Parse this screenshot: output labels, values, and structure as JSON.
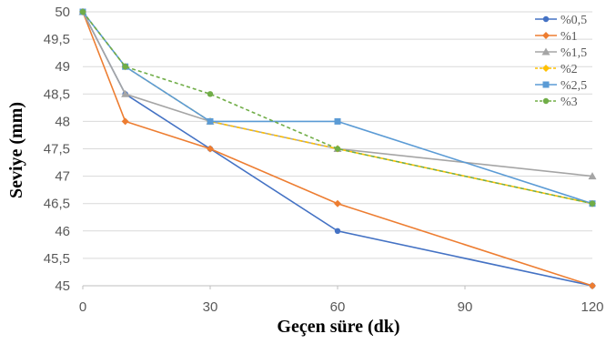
{
  "chart_data": {
    "type": "line",
    "title": "",
    "xlabel": "Geçen süre (dk)",
    "ylabel": "Seviye (mm)",
    "xlim": [
      0,
      120
    ],
    "ylim": [
      45,
      50
    ],
    "x_ticks": [
      0,
      30,
      60,
      90,
      120
    ],
    "y_ticks": [
      45,
      45.5,
      46,
      46.5,
      47,
      47.5,
      48,
      48.5,
      49,
      49.5,
      50
    ],
    "x_tick_labels": [
      "0",
      "30",
      "60",
      "90",
      "120"
    ],
    "y_tick_labels": [
      "45",
      "45,5",
      "46",
      "46,5",
      "47",
      "47,5",
      "48",
      "48,5",
      "49",
      "49,5",
      "50"
    ],
    "grid": "horizontal",
    "legend_position": "top-right",
    "series": [
      {
        "name": "%0,5",
        "color": "#4472C4",
        "marker": "circle",
        "line_style": "solid",
        "x": [
          0,
          10,
          30,
          60,
          120
        ],
        "values": [
          50,
          48.5,
          47.5,
          46,
          45
        ]
      },
      {
        "name": "%1",
        "color": "#ED7D31",
        "marker": "diamond",
        "line_style": "solid",
        "x": [
          0,
          10,
          30,
          60,
          120
        ],
        "values": [
          50,
          48,
          47.5,
          46.5,
          45
        ]
      },
      {
        "name": "%1,5",
        "color": "#A5A5A5",
        "marker": "triangle",
        "line_style": "solid",
        "x": [
          0,
          10,
          30,
          60,
          120
        ],
        "values": [
          50,
          48.5,
          48,
          47.5,
          47
        ]
      },
      {
        "name": "%2",
        "color": "#FFC000",
        "marker": "diamond",
        "line_style": "dashed",
        "x": [
          0,
          10,
          30,
          60,
          120
        ],
        "values": [
          50,
          49,
          48,
          47.5,
          46.5
        ]
      },
      {
        "name": "%2,5",
        "color": "#5B9BD5",
        "marker": "square",
        "line_style": "solid",
        "x": [
          0,
          10,
          30,
          60,
          120
        ],
        "values": [
          50,
          49,
          48,
          48,
          46.5
        ]
      },
      {
        "name": "%3",
        "color": "#70AD47",
        "marker": "circle",
        "line_style": "dashed",
        "x": [
          0,
          10,
          30,
          60,
          120
        ],
        "values": [
          50,
          49,
          48.5,
          47.5,
          46.5
        ]
      }
    ]
  }
}
